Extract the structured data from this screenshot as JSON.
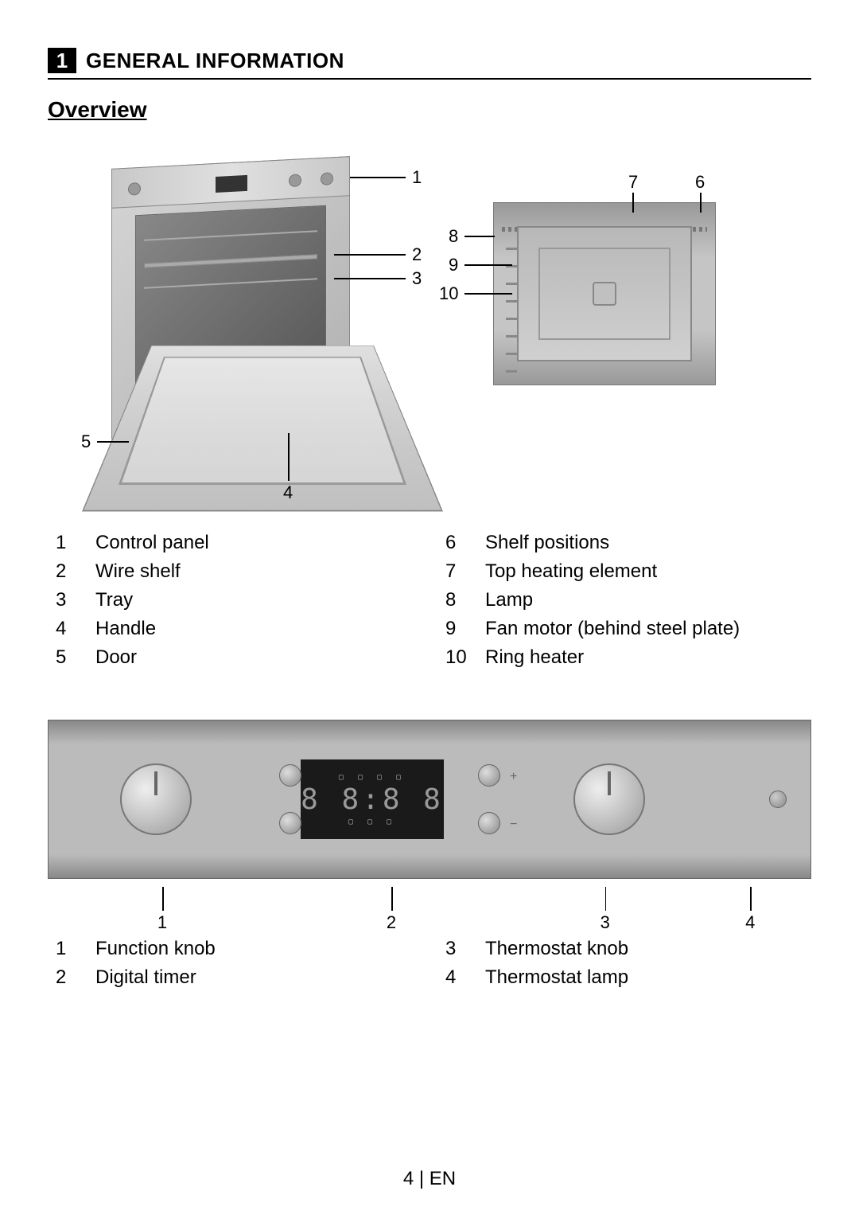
{
  "section": {
    "number": "1",
    "title": "GENERAL INFORMATION"
  },
  "subsection": {
    "title": "Overview"
  },
  "diagram1_callouts": {
    "c1": "1",
    "c2": "2",
    "c3": "3",
    "c4": "4",
    "c5": "5"
  },
  "diagram2_callouts": {
    "c6": "6",
    "c7": "7",
    "c8": "8",
    "c9": "9",
    "c10": "10"
  },
  "parts_left": [
    {
      "num": "1",
      "label": "Control panel"
    },
    {
      "num": "2",
      "label": "Wire shelf"
    },
    {
      "num": "3",
      "label": "Tray"
    },
    {
      "num": "4",
      "label": "Handle"
    },
    {
      "num": "5",
      "label": "Door"
    }
  ],
  "parts_right": [
    {
      "num": "6",
      "label": "Shelf positions"
    },
    {
      "num": "7",
      "label": "Top heating element"
    },
    {
      "num": "8",
      "label": "Lamp"
    },
    {
      "num": "9",
      "label": "Fan motor (behind steel plate)"
    },
    {
      "num": "10",
      "label": "Ring heater"
    }
  ],
  "panel_display": "8 8:8 8",
  "panel_callouts": [
    {
      "num": "1",
      "left_pct": 15
    },
    {
      "num": "2",
      "left_pct": 45
    },
    {
      "num": "3",
      "left_pct": 73
    },
    {
      "num": "4",
      "left_pct": 92
    }
  ],
  "panel_parts_left": [
    {
      "num": "1",
      "label": "Function knob"
    },
    {
      "num": "2",
      "label": "Digital timer"
    }
  ],
  "panel_parts_right": [
    {
      "num": "3",
      "label": "Thermostat knob"
    },
    {
      "num": "4",
      "label": "Thermostat lamp"
    }
  ],
  "footer": "4 | EN"
}
